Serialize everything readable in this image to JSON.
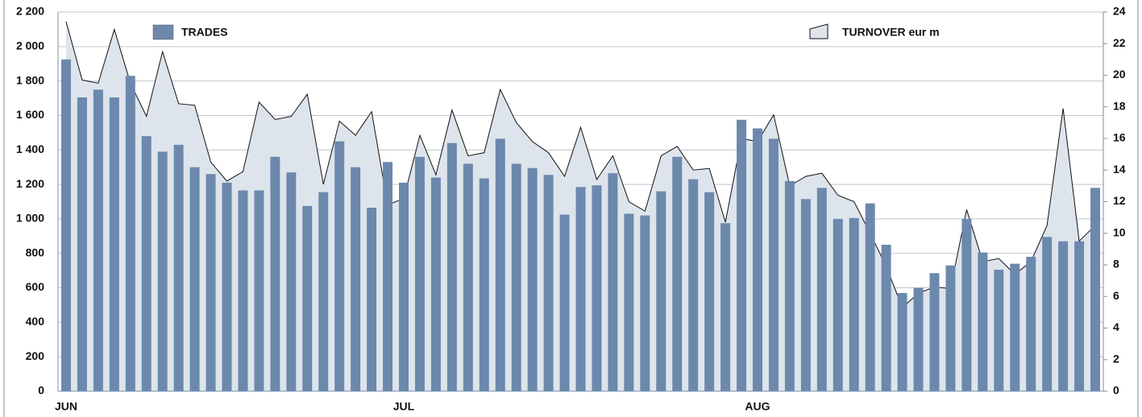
{
  "chart_data": {
    "type": "bar_area",
    "categories": [
      "JUN",
      null,
      null,
      null,
      null,
      null,
      null,
      null,
      null,
      null,
      null,
      null,
      null,
      null,
      null,
      null,
      null,
      null,
      null,
      null,
      null,
      "JUL",
      null,
      null,
      null,
      null,
      null,
      null,
      null,
      null,
      null,
      null,
      null,
      null,
      null,
      null,
      null,
      null,
      null,
      null,
      null,
      null,
      null,
      "AUG",
      null,
      null,
      null,
      null,
      null,
      null,
      null,
      null,
      null,
      null,
      null,
      null,
      null,
      null,
      null,
      null,
      null,
      null,
      null,
      null,
      null
    ],
    "series": [
      {
        "name": "TRADES",
        "type": "bar",
        "color": "#6c88ad",
        "values": [
          1925,
          1705,
          1750,
          1705,
          1830,
          1480,
          1390,
          1430,
          1300,
          1260,
          1210,
          1165,
          1165,
          1360,
          1270,
          1075,
          1155,
          1450,
          1300,
          1065,
          1330,
          1210,
          1360,
          1240,
          1440,
          1320,
          1235,
          1465,
          1320,
          1295,
          1255,
          1025,
          1185,
          1195,
          1265,
          1030,
          1020,
          1160,
          1360,
          1230,
          1155,
          975,
          1575,
          1525,
          1465,
          1220,
          1115,
          1180,
          1000,
          1005,
          1090,
          850,
          570,
          600,
          685,
          730,
          1000,
          805,
          705,
          740,
          780,
          895,
          870,
          870,
          1180
        ]
      },
      {
        "name": "TURNOVER eur m",
        "type": "area",
        "axis": "y2",
        "color": "#dde4ec",
        "values": [
          23.4,
          19.7,
          19.5,
          22.9,
          19.5,
          17.4,
          21.5,
          18.2,
          18.1,
          14.5,
          13.3,
          13.9,
          18.3,
          17.2,
          17.4,
          18.8,
          13.1,
          17.1,
          16.2,
          17.7,
          11.8,
          12.2,
          16.2,
          13.7,
          17.8,
          14.9,
          15.1,
          19.1,
          17.0,
          15.8,
          15.1,
          13.6,
          16.7,
          13.4,
          14.9,
          12.0,
          11.4,
          14.9,
          15.5,
          14.0,
          14.1,
          10.7,
          16.0,
          15.8,
          17.5,
          13.0,
          13.6,
          13.8,
          12.4,
          12.0,
          10.0,
          7.9,
          5.3,
          6.2,
          6.6,
          6.5,
          11.5,
          8.2,
          8.4,
          7.4,
          8.2,
          10.5,
          17.9,
          9.5,
          10.5
        ]
      }
    ],
    "ylim": [
      0,
      2200
    ],
    "yticks": [
      0,
      200,
      400,
      600,
      800,
      {
        "value": 1000,
        "label": "1 000"
      },
      {
        "value": 1200,
        "label": "1 200"
      },
      {
        "value": 1400,
        "label": "1 400"
      },
      {
        "value": 1600,
        "label": "1 600"
      },
      {
        "value": 1800,
        "label": "1 800"
      },
      {
        "value": 2000,
        "label": "2 000"
      },
      {
        "value": 2200,
        "label": "2 200"
      }
    ],
    "y2lim": [
      0,
      24
    ],
    "y2ticks": [
      0,
      2,
      4,
      6,
      8,
      10,
      12,
      14,
      16,
      18,
      20,
      22,
      24
    ],
    "grid": true
  }
}
